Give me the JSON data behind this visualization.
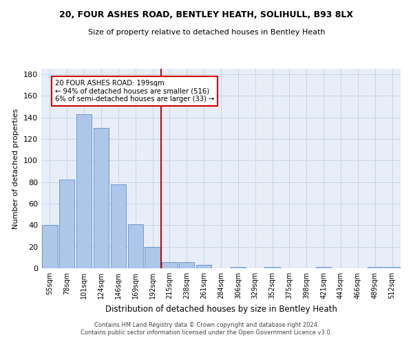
{
  "title1": "20, FOUR ASHES ROAD, BENTLEY HEATH, SOLIHULL, B93 8LX",
  "title2": "Size of property relative to detached houses in Bentley Heath",
  "xlabel": "Distribution of detached houses by size in Bentley Heath",
  "ylabel": "Number of detached properties",
  "bin_labels": [
    "55sqm",
    "78sqm",
    "101sqm",
    "124sqm",
    "146sqm",
    "169sqm",
    "192sqm",
    "215sqm",
    "238sqm",
    "261sqm",
    "284sqm",
    "306sqm",
    "329sqm",
    "352sqm",
    "375sqm",
    "398sqm",
    "421sqm",
    "443sqm",
    "466sqm",
    "489sqm",
    "512sqm"
  ],
  "bar_values": [
    40,
    82,
    143,
    130,
    78,
    41,
    20,
    6,
    6,
    3,
    0,
    1,
    0,
    1,
    0,
    0,
    1,
    0,
    0,
    1,
    1
  ],
  "bar_color": "#aec6e8",
  "bar_edge_color": "#5b8fc9",
  "grid_color": "#c8d4e8",
  "bg_color": "#e8eef8",
  "red_line_x": 6.5,
  "annotation_title": "20 FOUR ASHES ROAD: 199sqm",
  "annotation_line1": "← 94% of detached houses are smaller (516)",
  "annotation_line2": "6% of semi-detached houses are larger (33) →",
  "annotation_box_color": "#ffffff",
  "annotation_box_edge": "#cc0000",
  "red_line_color": "#cc0000",
  "ylim": [
    0,
    185
  ],
  "yticks": [
    0,
    20,
    40,
    60,
    80,
    100,
    120,
    140,
    160,
    180
  ],
  "footer1": "Contains HM Land Registry data © Crown copyright and database right 2024.",
  "footer2": "Contains public sector information licensed under the Open Government Licence v3.0."
}
